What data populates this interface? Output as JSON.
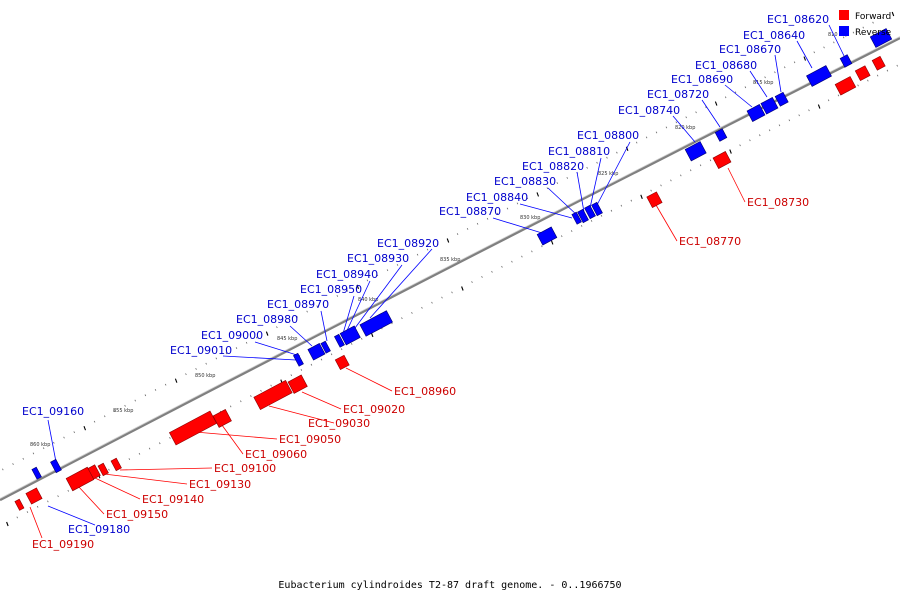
{
  "caption": "Eubacterium cylindroides T2-87 draft genome. - 0..1966750",
  "legend": [
    {
      "label": "Forward",
      "color": "#ff0000"
    },
    {
      "label": "Reverse",
      "color": "#0000ff"
    }
  ],
  "colors": {
    "forward": "#ff0000",
    "reverse": "#0000ff",
    "backbone": "#808080"
  },
  "kbp_labels": [
    "810 kbp",
    "815 kbp",
    "820 kbp",
    "825 kbp",
    "830 kbp",
    "835 kbp",
    "840 kbp",
    "845 kbp",
    "850 kbp",
    "855 kbp",
    "860 kbp"
  ],
  "reverse_genes": [
    "EC1_08620",
    "EC1_08640",
    "EC1_08670",
    "EC1_08680",
    "EC1_08690",
    "EC1_08720",
    "EC1_08740",
    "EC1_08800",
    "EC1_08810",
    "EC1_08820",
    "EC1_08830",
    "EC1_08840",
    "EC1_08870",
    "EC1_08920",
    "EC1_08930",
    "EC1_08940",
    "EC1_08950",
    "EC1_08970",
    "EC1_08980",
    "EC1_09000",
    "EC1_09010",
    "EC1_09160",
    "EC1_09180"
  ],
  "forward_genes": [
    "EC1_08730",
    "EC1_08770",
    "EC1_08960",
    "EC1_09020",
    "EC1_09030",
    "EC1_09050",
    "EC1_09060",
    "EC1_09100",
    "EC1_09130",
    "EC1_09140",
    "EC1_09150",
    "EC1_09190"
  ]
}
